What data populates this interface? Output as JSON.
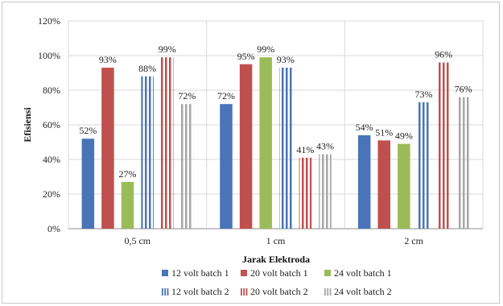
{
  "chart_data": {
    "type": "bar",
    "title": "",
    "xlabel": "Jarak Elektroda",
    "ylabel": "Efisiensi",
    "categories": [
      "0,5 cm",
      "1 cm",
      "2 cm"
    ],
    "ylim": [
      0,
      120
    ],
    "yticks": [
      "0%",
      "20%",
      "40%",
      "60%",
      "80%",
      "100%",
      "120%"
    ],
    "grid": true,
    "legend_position": "bottom",
    "series": [
      {
        "name": "12 volt batch 1",
        "values": [
          52,
          72,
          54
        ],
        "labels": [
          "52%",
          "72%",
          "54%"
        ],
        "color": "#4a74b8",
        "pattern": "solid"
      },
      {
        "name": "20 volt batch 1",
        "values": [
          93,
          95,
          51
        ],
        "labels": [
          "93%",
          "95%",
          "51%"
        ],
        "color": "#c0504d",
        "pattern": "solid"
      },
      {
        "name": "24 volt batch 1",
        "values": [
          27,
          99,
          49
        ],
        "labels": [
          "27%",
          "99%",
          "49%"
        ],
        "color": "#9bbb59",
        "pattern": "solid"
      },
      {
        "name": "12 volt batch 2",
        "values": [
          88,
          93,
          73
        ],
        "labels": [
          "88%",
          "93%",
          "73%"
        ],
        "color": "#4a74b8",
        "pattern": "striped"
      },
      {
        "name": "20 volt batch 2",
        "values": [
          99,
          41,
          96
        ],
        "labels": [
          "99%",
          "41%",
          "96%"
        ],
        "color": "#c0504d",
        "pattern": "striped"
      },
      {
        "name": "24 volt batch 2",
        "values": [
          72,
          43,
          76
        ],
        "labels": [
          "72%",
          "43%",
          "76%"
        ],
        "color": "#a6a6a6",
        "pattern": "striped"
      }
    ]
  }
}
